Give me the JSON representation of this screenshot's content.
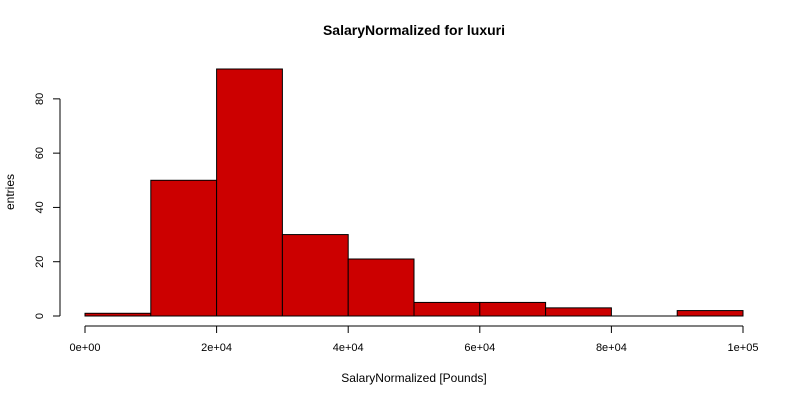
{
  "chart_data": {
    "type": "bar",
    "subtype": "histogram",
    "title": "SalaryNormalized for luxuri",
    "xlabel": "SalaryNormalized [Pounds]",
    "ylabel": "entries",
    "xlim": [
      0,
      100000
    ],
    "ylim": [
      0,
      91
    ],
    "bin_width": 10000,
    "bins": [
      {
        "start": 0,
        "end": 10000,
        "count": 1
      },
      {
        "start": 10000,
        "end": 20000,
        "count": 50
      },
      {
        "start": 20000,
        "end": 30000,
        "count": 91
      },
      {
        "start": 30000,
        "end": 40000,
        "count": 30
      },
      {
        "start": 40000,
        "end": 50000,
        "count": 21
      },
      {
        "start": 50000,
        "end": 60000,
        "count": 5
      },
      {
        "start": 60000,
        "end": 70000,
        "count": 5
      },
      {
        "start": 70000,
        "end": 80000,
        "count": 3
      },
      {
        "start": 80000,
        "end": 90000,
        "count": 0
      },
      {
        "start": 90000,
        "end": 100000,
        "count": 2
      }
    ],
    "x_ticks": [
      {
        "value": 0,
        "label": "0e+00"
      },
      {
        "value": 20000,
        "label": "2e+04"
      },
      {
        "value": 40000,
        "label": "4e+04"
      },
      {
        "value": 60000,
        "label": "6e+04"
      },
      {
        "value": 80000,
        "label": "8e+04"
      },
      {
        "value": 100000,
        "label": "1e+05"
      }
    ],
    "y_ticks": [
      {
        "value": 0,
        "label": "0"
      },
      {
        "value": 20,
        "label": "20"
      },
      {
        "value": 40,
        "label": "40"
      },
      {
        "value": 60,
        "label": "60"
      },
      {
        "value": 80,
        "label": "80"
      }
    ],
    "bar_color": "#cc0000",
    "bar_edge_color": "#000000",
    "grid": false,
    "legend": "none"
  }
}
